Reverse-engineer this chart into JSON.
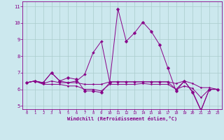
{
  "xlabel": "Windchill (Refroidissement éolien,°C)",
  "xlim": [
    -0.5,
    23.5
  ],
  "ylim": [
    4.8,
    11.3
  ],
  "yticks": [
    5,
    6,
    7,
    8,
    9,
    10,
    11
  ],
  "xticks": [
    0,
    1,
    2,
    3,
    4,
    5,
    6,
    7,
    8,
    9,
    10,
    11,
    12,
    13,
    14,
    15,
    16,
    17,
    18,
    19,
    20,
    21,
    22,
    23
  ],
  "bg_color": "#cce8ee",
  "line_color": "#880088",
  "grid_color": "#aacccc",
  "series": [
    [
      6.4,
      6.5,
      6.4,
      7.0,
      6.5,
      6.7,
      6.6,
      5.9,
      5.9,
      5.8,
      6.4,
      10.85,
      8.9,
      9.4,
      10.05,
      9.5,
      8.7,
      7.3,
      5.9,
      6.5,
      5.8,
      4.7,
      6.0,
      6.0
    ],
    [
      6.4,
      6.5,
      6.4,
      7.0,
      6.5,
      6.4,
      6.5,
      6.9,
      8.2,
      8.9,
      6.45,
      6.45,
      6.45,
      6.45,
      6.45,
      6.45,
      6.45,
      6.45,
      6.0,
      6.5,
      5.85,
      4.75,
      6.0,
      6.0
    ],
    [
      6.4,
      6.5,
      6.35,
      6.5,
      6.4,
      6.4,
      6.4,
      6.3,
      6.3,
      6.3,
      6.45,
      6.45,
      6.45,
      6.45,
      6.45,
      6.45,
      6.45,
      6.45,
      6.35,
      6.5,
      6.35,
      6.1,
      6.1,
      6.0
    ],
    [
      6.4,
      6.5,
      6.3,
      6.3,
      6.3,
      6.2,
      6.2,
      6.0,
      6.0,
      5.9,
      6.3,
      6.3,
      6.3,
      6.3,
      6.35,
      6.3,
      6.3,
      6.3,
      6.0,
      6.2,
      6.05,
      5.5,
      6.0,
      6.0
    ]
  ]
}
